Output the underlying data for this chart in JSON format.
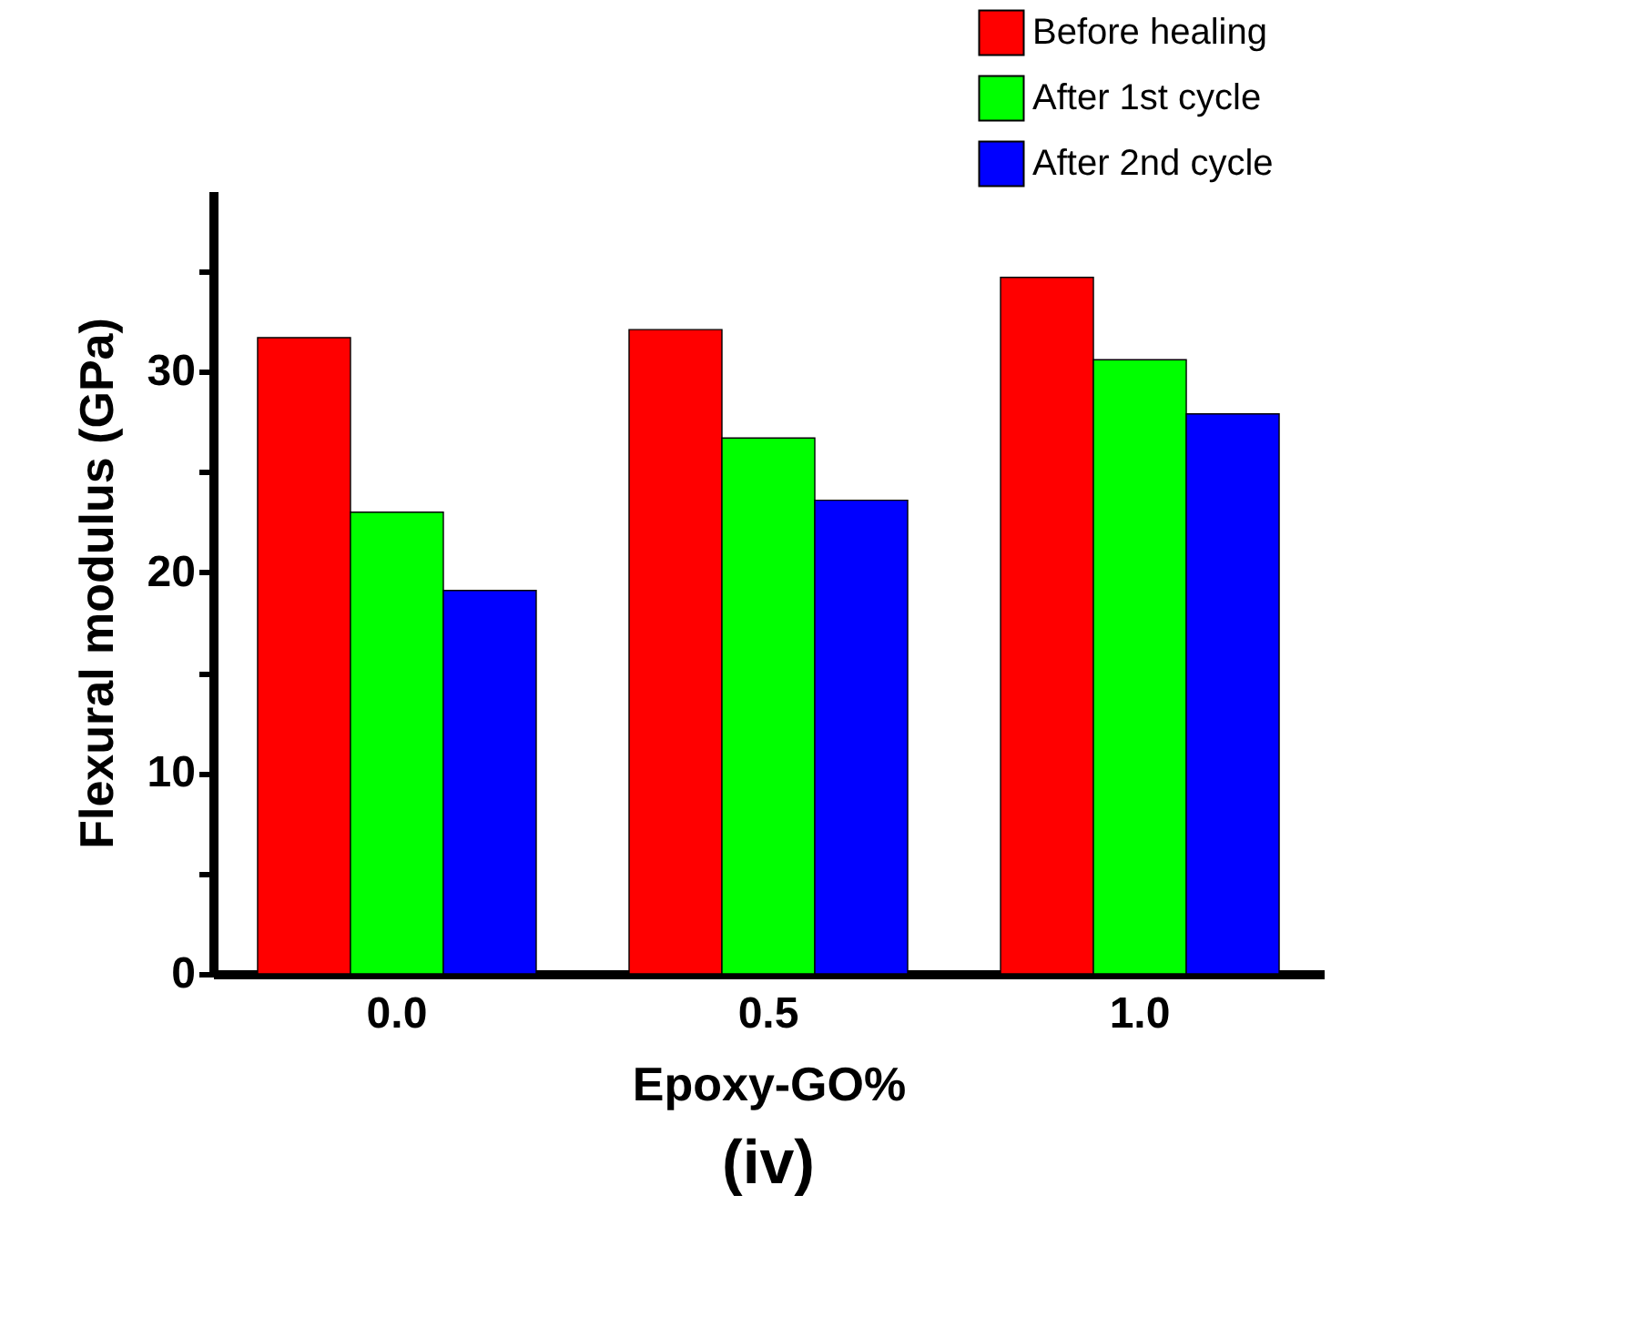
{
  "chart_data": {
    "type": "bar",
    "xlabel": "Epoxy-GO%",
    "ylabel": "Flexural modulus (GPa)",
    "categories": [
      "0.0",
      "0.5",
      "1.0"
    ],
    "series": [
      {
        "name": "Before healing",
        "color": "#ff0000",
        "values": [
          31.7,
          32.1,
          34.7
        ]
      },
      {
        "name": "After 1st cycle",
        "color": "#00ff00",
        "values": [
          23.0,
          26.7,
          30.6
        ]
      },
      {
        "name": "After 2nd cycle",
        "color": "#0000ff",
        "values": [
          19.1,
          23.6,
          27.9
        ]
      }
    ],
    "ylim": [
      0,
      39
    ],
    "yticks": [
      0,
      {
        "value": 5,
        "label": null
      },
      10,
      {
        "value": 15,
        "label": null
      },
      20,
      {
        "value": 25,
        "label": null
      },
      30,
      {
        "value": 35,
        "label": null
      }
    ],
    "grid": false,
    "legend": "top right",
    "annotations": [
      "(iv)"
    ]
  }
}
